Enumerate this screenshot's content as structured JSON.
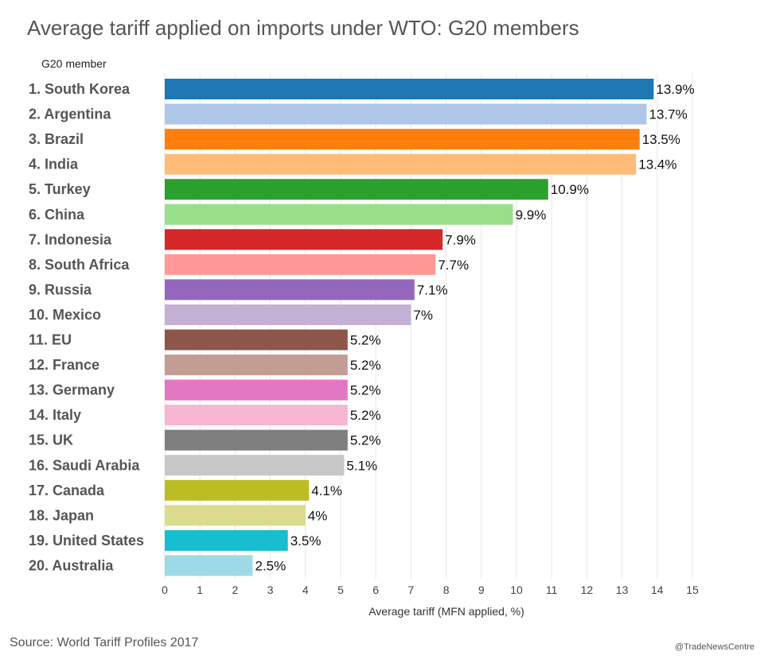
{
  "title": "Average tariff applied on imports under WTO: G20 members",
  "source": "Source: World Tariff Profiles 2017",
  "credit": "@TradeNewsCentre",
  "chart_data": {
    "type": "bar",
    "orientation": "horizontal",
    "title": "Average tariff applied on imports under WTO: G20 members",
    "category_header": "G20 member",
    "xlabel": "Average tariff (MFN applied, %)",
    "xlim": [
      0,
      15
    ],
    "xticks": [
      "0",
      "1",
      "2",
      "3",
      "4",
      "5",
      "6",
      "7",
      "8",
      "9",
      "10",
      "11",
      "12",
      "13",
      "14",
      "15"
    ],
    "grid": true,
    "categories": [
      "1. South Korea",
      "2. Argentina",
      "3. Brazil",
      "4. India",
      "5. Turkey",
      "6. China",
      "7. Indonesia",
      "8. South Africa",
      "9. Russia",
      "10. Mexico",
      "11. EU",
      "12. France",
      "13. Germany",
      "14. Italy",
      "15. UK",
      "16. Saudi Arabia",
      "17. Canada",
      "18. Japan",
      "19. United States",
      "20. Australia"
    ],
    "values": [
      13.9,
      13.7,
      13.5,
      13.4,
      10.9,
      9.9,
      7.9,
      7.7,
      7.1,
      7,
      5.2,
      5.2,
      5.2,
      5.2,
      5.2,
      5.1,
      4.1,
      4,
      3.5,
      2.5
    ],
    "labels": [
      "13.9%",
      "13.7%",
      "13.5%",
      "13.4%",
      "10.9%",
      "9.9%",
      "7.9%",
      "7.7%",
      "7.1%",
      "7%",
      "5.2%",
      "5.2%",
      "5.2%",
      "5.2%",
      "5.2%",
      "5.1%",
      "4.1%",
      "4%",
      "3.5%",
      "2.5%"
    ],
    "colors": [
      "#1f77b4",
      "#aec7e8",
      "#ff7f0e",
      "#ffbb78",
      "#2ca02c",
      "#98df8a",
      "#d62728",
      "#ff9896",
      "#9467bd",
      "#c5b0d5",
      "#8c564b",
      "#c49c94",
      "#e377c2",
      "#f7b6d2",
      "#7f7f7f",
      "#c7c7c7",
      "#bcbd22",
      "#dbdb8d",
      "#17becf",
      "#9edae5"
    ]
  }
}
